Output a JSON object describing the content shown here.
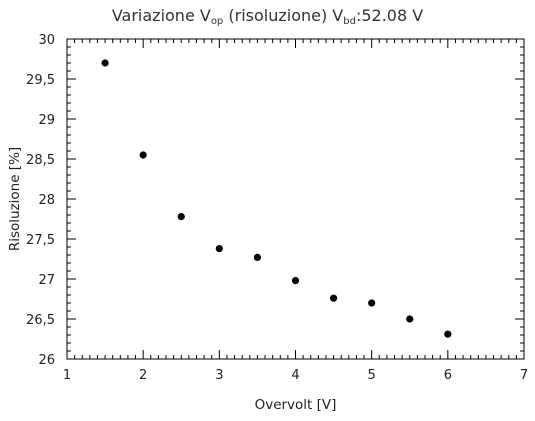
{
  "chart_data": {
    "type": "scatter",
    "title": {
      "base": "Variazione V",
      "sub1": "op",
      "mid": " (risoluzione) V",
      "sub2": "bd",
      "tail": ":52.08 V"
    },
    "xlabel": "Overvolt [V]",
    "ylabel": "Risoluzione [%]",
    "xlim": [
      1,
      7
    ],
    "ylim": [
      26,
      30
    ],
    "x_ticks": [
      {
        "v": 1,
        "label": "1"
      },
      {
        "v": 2,
        "label": "2"
      },
      {
        "v": 3,
        "label": "3"
      },
      {
        "v": 4,
        "label": "4"
      },
      {
        "v": 5,
        "label": "5"
      },
      {
        "v": 6,
        "label": "6"
      },
      {
        "v": 7,
        "label": "7"
      }
    ],
    "y_ticks": [
      {
        "v": 26,
        "label": "26"
      },
      {
        "v": 26.5,
        "label": "26,5"
      },
      {
        "v": 27,
        "label": "27"
      },
      {
        "v": 27.5,
        "label": "27,5"
      },
      {
        "v": 28,
        "label": "28"
      },
      {
        "v": 28.5,
        "label": "28,5"
      },
      {
        "v": 29,
        "label": "29"
      },
      {
        "v": 29.5,
        "label": "29,5"
      },
      {
        "v": 30,
        "label": "30"
      }
    ],
    "x": [
      1.5,
      2.0,
      2.5,
      3.0,
      3.5,
      4.0,
      4.5,
      5.0,
      5.5,
      6.0
    ],
    "y": [
      29.7,
      28.55,
      27.78,
      27.38,
      27.27,
      26.98,
      26.76,
      26.7,
      26.5,
      26.31
    ],
    "marker_color": "#000000",
    "grid": false
  }
}
